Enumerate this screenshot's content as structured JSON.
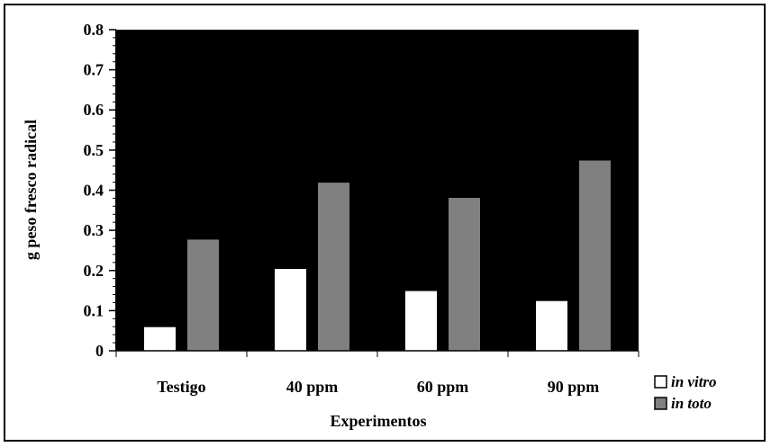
{
  "chart_data": {
    "type": "bar",
    "title": "",
    "xlabel": "Experimentos",
    "ylabel": "g peso fresco radical",
    "ylim": [
      0,
      0.8
    ],
    "yticks": [
      "0",
      "0.1",
      "0.2",
      "0.3",
      "0.4",
      "0.5",
      "0.6",
      "0.7",
      "0.8"
    ],
    "categories": [
      "Testigo",
      "40 ppm",
      "60 ppm",
      "90 ppm"
    ],
    "series": [
      {
        "name": "in vitro",
        "values": [
          0.06,
          0.205,
          0.15,
          0.125
        ],
        "color": "#ffffff"
      },
      {
        "name": "in toto",
        "values": [
          0.278,
          0.42,
          0.382,
          0.475
        ],
        "color": "#808080"
      }
    ],
    "plot_background": "#000000",
    "grid": false,
    "legend_position": "bottom-right"
  }
}
